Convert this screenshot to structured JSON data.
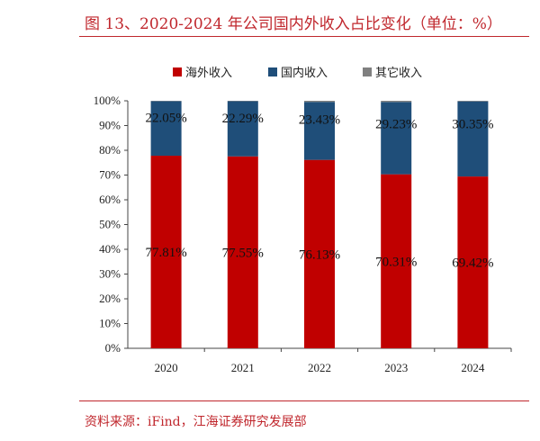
{
  "figure": {
    "title": "图 13、2020-2024 年公司国内外收入占比变化（单位：%）",
    "source": "资料来源：iFind，江海证券研究发展部"
  },
  "chart_data": {
    "type": "bar",
    "stacked": true,
    "categories": [
      "2020",
      "2021",
      "2022",
      "2023",
      "2024"
    ],
    "series": [
      {
        "name": "海外收入",
        "color": "#c00000",
        "values": [
          77.81,
          77.55,
          76.13,
          70.31,
          69.42
        ],
        "labels": [
          "77.81%",
          "77.55%",
          "76.13%",
          "70.31%",
          "69.42%"
        ]
      },
      {
        "name": "国内收入",
        "color": "#1f4e79",
        "values": [
          22.05,
          22.29,
          23.43,
          29.23,
          30.35
        ],
        "labels": [
          "22.05%",
          "22.29%",
          "23.43%",
          "29.23%",
          "30.35%"
        ]
      },
      {
        "name": "其它收入",
        "color": "#808080",
        "values": [
          0.14,
          0.16,
          0.44,
          0.46,
          0.23
        ],
        "labels": []
      }
    ],
    "ylim": [
      0,
      100
    ],
    "yticks": [
      "0%",
      "10%",
      "20%",
      "30%",
      "40%",
      "50%",
      "60%",
      "70%",
      "80%",
      "90%",
      "100%"
    ],
    "grid": false,
    "legend_position": "top"
  }
}
